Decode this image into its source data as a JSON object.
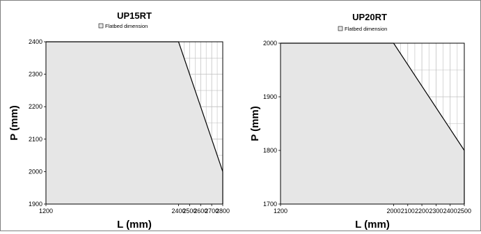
{
  "chart_data": [
    {
      "type": "area",
      "title": "UP15RT",
      "xlabel": "L (mm)",
      "ylabel": "P (mm)",
      "xlim": [
        1200,
        2800
      ],
      "ylim": [
        1900,
        2400
      ],
      "x_ticks": [
        1200,
        2400,
        2500,
        2600,
        2700,
        2800
      ],
      "y_ticks": [
        1900,
        2000,
        2100,
        2200,
        2300,
        2400
      ],
      "x_tick_labels": [
        "1200",
        "2400",
        "2500",
        "2600",
        "2700",
        "2800"
      ],
      "y_tick_labels": [
        "1900",
        "2000",
        "2100",
        "2200",
        "2300",
        "2400"
      ],
      "grid": true,
      "legend": "top",
      "series": [
        {
          "name": "Flatbed dimension",
          "x": [
            1200,
            2400,
            2800
          ],
          "y": [
            2400,
            2400,
            2000
          ]
        }
      ],
      "colors": {
        "fill": "#e6e6e6",
        "line": "#000000",
        "grid": "#bfbfbf"
      }
    },
    {
      "type": "area",
      "title": "UP20RT",
      "xlabel": "L (mm)",
      "ylabel": "P (mm)",
      "xlim": [
        1200,
        2500
      ],
      "ylim": [
        1700,
        2000
      ],
      "x_ticks": [
        1200,
        2000,
        2100,
        2200,
        2300,
        2400,
        2500
      ],
      "y_ticks": [
        1700,
        1800,
        1900,
        2000
      ],
      "x_tick_labels": [
        "1200",
        "2000",
        "2100",
        "2200",
        "2300",
        "2400",
        "2500"
      ],
      "y_tick_labels": [
        "1700",
        "1800",
        "1900",
        "2000"
      ],
      "grid": true,
      "legend": "top",
      "series": [
        {
          "name": "Flatbed dimension",
          "x": [
            1200,
            2000,
            2500
          ],
          "y": [
            2000,
            2000,
            1800
          ]
        }
      ],
      "colors": {
        "fill": "#e6e6e6",
        "line": "#000000",
        "grid": "#bfbfbf"
      }
    }
  ]
}
